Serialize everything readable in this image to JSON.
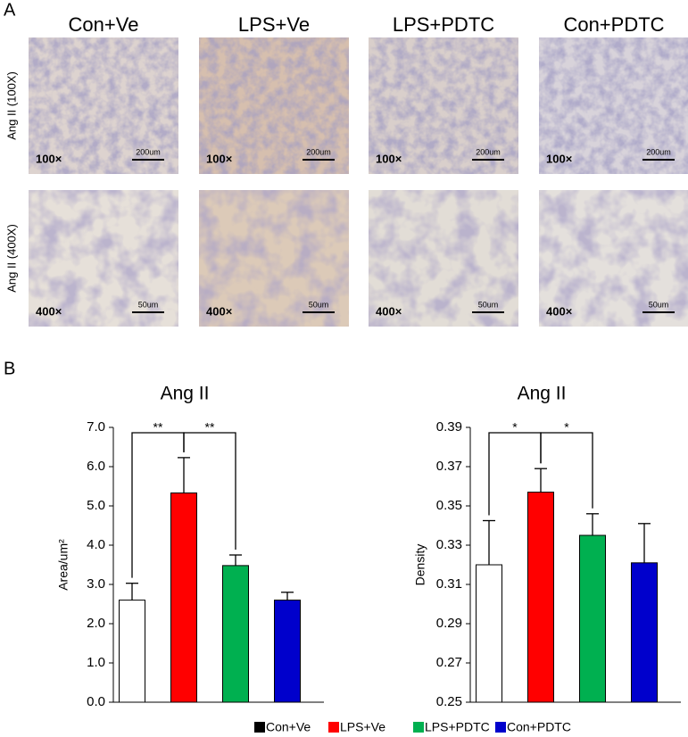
{
  "panel_labels": [
    "A",
    "B"
  ],
  "micrographs": {
    "columns": [
      "Con+Ve",
      "LPS+Ve",
      "LPS+PDTC",
      "Con+PDTC"
    ],
    "rows": [
      {
        "label": "Ang II (100X)",
        "magnification": "100×",
        "scale_bar": "200um"
      },
      {
        "label": "Ang II (400X)",
        "magnification": "400×",
        "scale_bar": "50um"
      }
    ]
  },
  "legend": [
    {
      "name": "Con+Ve",
      "color": "#000000"
    },
    {
      "name": "LPS+Ve",
      "color": "#ff0000"
    },
    {
      "name": "LPS+PDTC",
      "color": "#00b050"
    },
    {
      "name": "Con+PDTC",
      "color": "#0000cc"
    }
  ],
  "chart_data": [
    {
      "type": "bar",
      "title": "Ang II",
      "y_label": "Area/um²",
      "values": [
        2.6,
        5.33,
        3.48,
        2.6
      ],
      "errors": [
        0.43,
        0.9,
        0.27,
        0.2
      ],
      "colors": [
        "#ffffff",
        "#ff0000",
        "#00b050",
        "#0000cc"
      ],
      "ylim": [
        0,
        7
      ],
      "yticks": [
        {
          "value": 0,
          "label": "0.0"
        },
        {
          "value": 1,
          "label": "1.0"
        },
        {
          "value": 2,
          "label": "2.0"
        },
        {
          "value": 3,
          "label": "3.0"
        },
        {
          "value": 4,
          "label": "4.0"
        },
        {
          "value": 5,
          "label": "5.0"
        },
        {
          "value": 6,
          "label": "6.0"
        },
        {
          "value": 7,
          "label": "7.0"
        }
      ],
      "annotations": [
        "**",
        "**"
      ]
    },
    {
      "type": "bar",
      "title": "Ang II",
      "y_label": "Density",
      "values": [
        0.32,
        0.357,
        0.335,
        0.321
      ],
      "errors": [
        0.0225,
        0.012,
        0.011,
        0.02
      ],
      "colors": [
        "#ffffff",
        "#ff0000",
        "#00b050",
        "#0000cc"
      ],
      "ylim": [
        0.25,
        0.39
      ],
      "yticks": [
        0.25,
        0.27,
        0.29,
        0.31,
        0.33,
        0.35,
        0.37,
        0.39
      ],
      "annotations": [
        "*",
        "*"
      ]
    }
  ]
}
